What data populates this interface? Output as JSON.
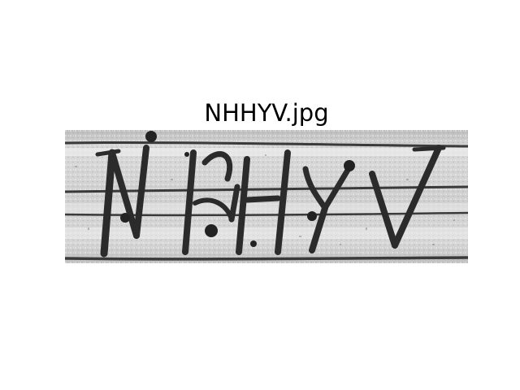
{
  "figure": {
    "title": "NHHYV.jpg"
  },
  "captcha_image": {
    "depicted_text": "NHHYV",
    "background_color": "#cfcfcf",
    "ink_color": "#2b2b2b",
    "line_color": "#3a3a3a"
  }
}
